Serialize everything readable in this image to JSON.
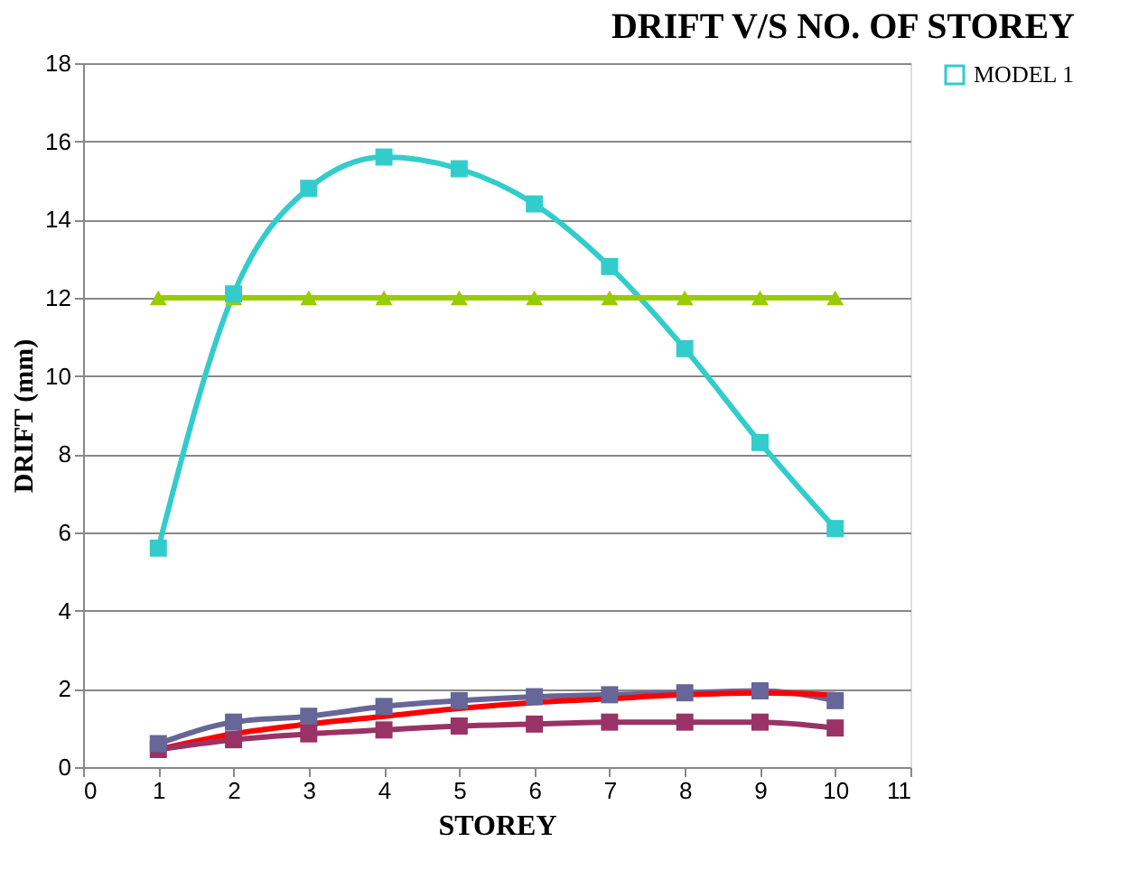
{
  "chart_data": {
    "type": "line",
    "title": "DRIFT V/S NO. OF STOREY",
    "xlabel": "STOREY",
    "ylabel": "DRIFT (mm)",
    "x": [
      1,
      2,
      3,
      4,
      5,
      6,
      7,
      8,
      9,
      10
    ],
    "xlim": [
      0,
      11
    ],
    "xticks": [
      0,
      1,
      2,
      3,
      4,
      5,
      6,
      7,
      8,
      9,
      10,
      11
    ],
    "ylim": [
      0,
      18
    ],
    "yticks": [
      0,
      2,
      4,
      6,
      8,
      10,
      12,
      14,
      16,
      18
    ],
    "grid": "y",
    "legend": "right",
    "line_style": "solid",
    "series": [
      {
        "name": "MODEL 1",
        "color": "#33cccc",
        "marker": "square",
        "values": [
          5.6,
          12.1,
          14.8,
          15.6,
          15.3,
          14.4,
          12.8,
          10.7,
          8.3,
          6.1
        ]
      },
      {
        "color": "#99cc00",
        "marker": "triangle",
        "values": [
          12,
          12,
          12,
          12,
          12,
          12,
          12,
          12,
          12,
          12
        ]
      },
      {
        "color": "#666699",
        "marker": "square",
        "values": [
          0.6,
          1.15,
          1.3,
          1.55,
          1.7,
          1.8,
          1.85,
          1.9,
          1.95,
          1.7
        ]
      },
      {
        "color": "#ff0000",
        "marker": "none",
        "values": [
          0.45,
          0.85,
          1.1,
          1.3,
          1.5,
          1.65,
          1.75,
          1.85,
          1.9,
          1.85
        ]
      },
      {
        "color": "#993366",
        "marker": "square",
        "values": [
          0.45,
          0.7,
          0.85,
          0.95,
          1.05,
          1.1,
          1.15,
          1.15,
          1.15,
          1.0
        ]
      }
    ]
  }
}
